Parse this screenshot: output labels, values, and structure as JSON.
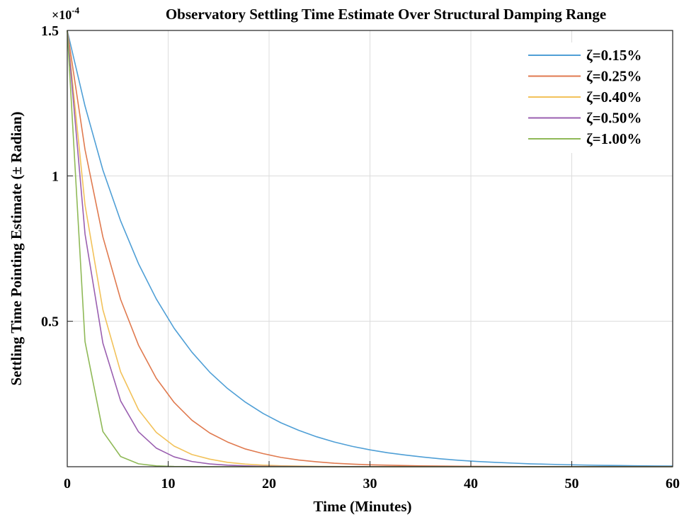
{
  "chart_data": {
    "type": "line",
    "title": "Observatory Settling Time Estimate Over Structural Damping Range",
    "xlabel": "Time (Minutes)",
    "ylabel": "Settling Time Pointing Estimate (± Radian)",
    "y_exponent_label": "×10",
    "y_exponent_power": "-4",
    "xlim": [
      0,
      60
    ],
    "ylim": [
      0,
      1.5
    ],
    "x_ticks": [
      "0",
      "10",
      "20",
      "30",
      "40",
      "50",
      "60"
    ],
    "y_ticks": [
      "0.5",
      "1",
      "1.5"
    ],
    "grid": true,
    "legend_position": "top-right",
    "series": [
      {
        "name": "ζ=0.15%",
        "color": "#4f9fd6",
        "x": [
          0,
          1.76,
          3.53,
          5.29,
          7.06,
          8.82,
          10.59,
          12.35,
          14.12,
          15.88,
          17.65,
          19.41,
          21.18,
          22.94,
          24.71,
          26.47,
          28.24,
          30,
          31.76,
          33.53,
          35.29,
          37.06,
          38.82,
          40.59,
          42.35,
          44.12,
          45.88,
          47.65,
          49.41,
          51.18,
          52.94,
          54.71,
          56.47,
          58.24,
          60
        ],
        "values": [
          1.5,
          1.24,
          1.02,
          0.845,
          0.698,
          0.577,
          0.476,
          0.394,
          0.325,
          0.269,
          0.222,
          0.183,
          0.151,
          0.125,
          0.103,
          0.085,
          0.07,
          0.058,
          0.048,
          0.04,
          0.033,
          0.027,
          0.022,
          0.018,
          0.015,
          0.0125,
          0.01,
          0.0085,
          0.007,
          0.0058,
          0.0048,
          0.004,
          0.0033,
          0.0027,
          0.0022
        ]
      },
      {
        "name": "ζ=0.25%",
        "color": "#e07a4f",
        "x": [
          0,
          1.76,
          3.53,
          5.29,
          7.06,
          8.82,
          10.59,
          12.35,
          14.12,
          15.88,
          17.65,
          19.41,
          21.18,
          22.94,
          24.71,
          26.47,
          28.24,
          30,
          35,
          40,
          45,
          50,
          55,
          60
        ],
        "values": [
          1.5,
          1.09,
          0.79,
          0.575,
          0.418,
          0.304,
          0.221,
          0.16,
          0.116,
          0.085,
          0.061,
          0.045,
          0.032,
          0.023,
          0.017,
          0.012,
          0.009,
          0.0065,
          0.003,
          0.0013,
          0.0006,
          0.0003,
          0.0001,
          0.0
        ]
      },
      {
        "name": "ζ=0.40%",
        "color": "#f2c25a",
        "x": [
          0,
          1.76,
          3.53,
          5.29,
          7.06,
          8.82,
          10.59,
          12.35,
          14.12,
          15.88,
          17.65,
          19.41,
          21.18,
          25,
          30,
          40,
          50,
          60
        ],
        "values": [
          1.5,
          0.9,
          0.54,
          0.326,
          0.196,
          0.118,
          0.071,
          0.042,
          0.026,
          0.015,
          0.009,
          0.0055,
          0.0033,
          0.001,
          0.0003,
          0.0,
          0.0,
          0.0
        ]
      },
      {
        "name": "ζ=0.50%",
        "color": "#9a5fb0",
        "x": [
          0,
          1.76,
          3.53,
          5.29,
          7.06,
          8.82,
          10.59,
          12.35,
          14.12,
          15.88,
          17.65,
          19.41,
          25,
          30,
          40,
          50,
          60
        ],
        "values": [
          1.5,
          0.8,
          0.425,
          0.226,
          0.12,
          0.064,
          0.034,
          0.018,
          0.0097,
          0.0052,
          0.0028,
          0.0015,
          0.0002,
          0.0,
          0.0,
          0.0,
          0.0
        ]
      },
      {
        "name": "ζ=1.00%",
        "color": "#8fb957",
        "x": [
          0,
          1.76,
          3.53,
          5.29,
          7.06,
          8.82,
          10.59,
          12.35,
          15,
          20,
          30,
          40,
          50,
          60
        ],
        "values": [
          1.5,
          0.43,
          0.121,
          0.035,
          0.01,
          0.003,
          0.0008,
          0.0002,
          0.0,
          0.0,
          0.0,
          0.0,
          0.0,
          0.0
        ]
      }
    ]
  }
}
